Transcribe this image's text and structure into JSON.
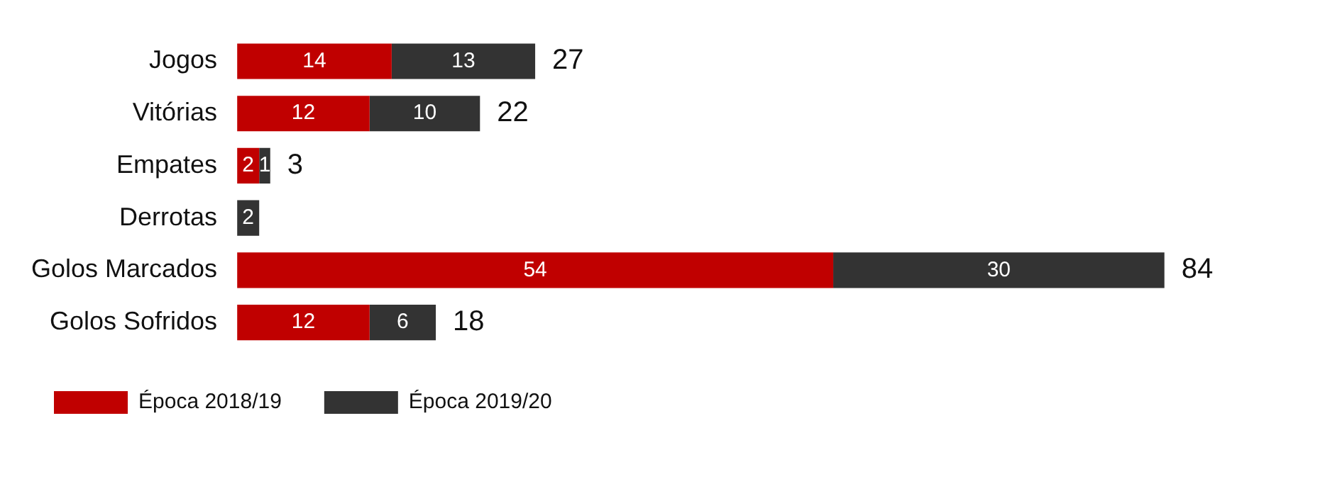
{
  "chart_data": {
    "type": "bar",
    "orientation": "horizontal",
    "stacked": true,
    "data_labels": true,
    "legend": "bottom",
    "categories": [
      "Jogos",
      "Vitórias",
      "Empates",
      "Derrotas",
      "Golos Marcados",
      "Golos Sofridos"
    ],
    "series": [
      {
        "name": "Época 2018/19",
        "color": "#c00000",
        "values": [
          14,
          12,
          2,
          null,
          54,
          12
        ]
      },
      {
        "name": "Época 2019/20",
        "color": "#333333",
        "values": [
          13,
          10,
          1,
          2,
          30,
          6
        ]
      }
    ],
    "totals": [
      "27",
      "22",
      "3",
      null,
      "84",
      "18"
    ]
  }
}
